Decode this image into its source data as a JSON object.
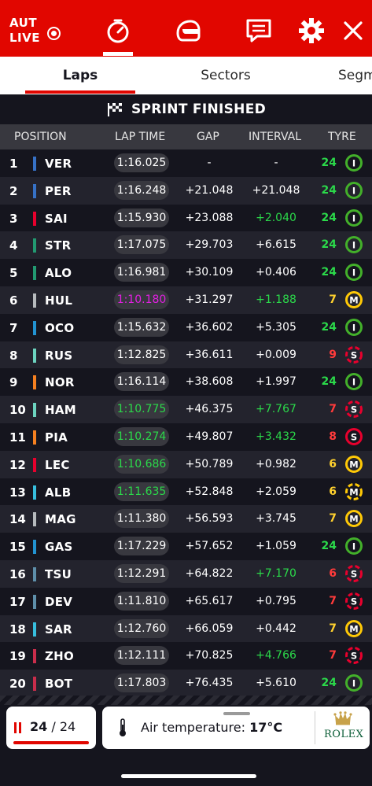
{
  "topbar": {
    "session_code": "AUT",
    "live_label": "LIVE",
    "icons": [
      "timer-icon",
      "helmet-icon",
      "chat-icon",
      "gear-icon",
      "close-icon"
    ]
  },
  "tabs": [
    {
      "label": "Laps",
      "active": true
    },
    {
      "label": "Sectors",
      "active": false
    },
    {
      "label": "Segm",
      "active": false
    }
  ],
  "banner": {
    "text": "SPRINT FINISHED",
    "icon": "checkered-flag-icon"
  },
  "columns": {
    "position": "POSITION",
    "lap_time": "LAP TIME",
    "gap": "GAP",
    "interval": "INTERVAL",
    "tyre": "TYRE"
  },
  "colors": {
    "accent": "#e10600",
    "green": "#2bd94a",
    "purple": "#e31fe3",
    "soft": "#e8002d",
    "medium": "#ffc906",
    "intermediate": "#43b02a",
    "soft_text": "#ff3b3b",
    "medium_text": "#ffd12e"
  },
  "drivers": [
    {
      "pos": "1",
      "code": "VER",
      "team_color": "#3671c6",
      "lap": "1:16.025",
      "lap_style": "normal",
      "gap": "-",
      "int": "-",
      "int_style": "normal",
      "laps": "24",
      "tyre": "I"
    },
    {
      "pos": "2",
      "code": "PER",
      "team_color": "#3671c6",
      "lap": "1:16.248",
      "lap_style": "normal",
      "gap": "+21.048",
      "int": "+21.048",
      "int_style": "normal",
      "laps": "24",
      "tyre": "I"
    },
    {
      "pos": "3",
      "code": "SAI",
      "team_color": "#e8002d",
      "lap": "1:15.930",
      "lap_style": "normal",
      "gap": "+23.088",
      "int": "+2.040",
      "int_style": "green",
      "laps": "24",
      "tyre": "I"
    },
    {
      "pos": "4",
      "code": "STR",
      "team_color": "#229971",
      "lap": "1:17.075",
      "lap_style": "normal",
      "gap": "+29.703",
      "int": "+6.615",
      "int_style": "normal",
      "laps": "24",
      "tyre": "I"
    },
    {
      "pos": "5",
      "code": "ALO",
      "team_color": "#229971",
      "lap": "1:16.981",
      "lap_style": "normal",
      "gap": "+30.109",
      "int": "+0.406",
      "int_style": "normal",
      "laps": "24",
      "tyre": "I"
    },
    {
      "pos": "6",
      "code": "HUL",
      "team_color": "#b6babd",
      "lap": "1:10.180",
      "lap_style": "purple",
      "gap": "+31.297",
      "int": "+1.188",
      "int_style": "green",
      "laps": "7",
      "tyre": "M"
    },
    {
      "pos": "7",
      "code": "OCO",
      "team_color": "#2293d1",
      "lap": "1:15.632",
      "lap_style": "normal",
      "gap": "+36.602",
      "int": "+5.305",
      "int_style": "normal",
      "laps": "24",
      "tyre": "I"
    },
    {
      "pos": "8",
      "code": "RUS",
      "team_color": "#6cd3bf",
      "lap": "1:12.825",
      "lap_style": "normal",
      "gap": "+36.611",
      "int": "+0.009",
      "int_style": "normal",
      "laps": "9",
      "tyre": "S-used"
    },
    {
      "pos": "9",
      "code": "NOR",
      "team_color": "#f58020",
      "lap": "1:16.114",
      "lap_style": "normal",
      "gap": "+38.608",
      "int": "+1.997",
      "int_style": "normal",
      "laps": "24",
      "tyre": "I"
    },
    {
      "pos": "10",
      "code": "HAM",
      "team_color": "#6cd3bf",
      "lap": "1:10.775",
      "lap_style": "green",
      "gap": "+46.375",
      "int": "+7.767",
      "int_style": "green",
      "laps": "7",
      "tyre": "S-used"
    },
    {
      "pos": "11",
      "code": "PIA",
      "team_color": "#f58020",
      "lap": "1:10.274",
      "lap_style": "green",
      "gap": "+49.807",
      "int": "+3.432",
      "int_style": "green",
      "laps": "8",
      "tyre": "S"
    },
    {
      "pos": "12",
      "code": "LEC",
      "team_color": "#e8002d",
      "lap": "1:10.686",
      "lap_style": "green",
      "gap": "+50.789",
      "int": "+0.982",
      "int_style": "normal",
      "laps": "6",
      "tyre": "M"
    },
    {
      "pos": "13",
      "code": "ALB",
      "team_color": "#37bedd",
      "lap": "1:11.635",
      "lap_style": "green",
      "gap": "+52.848",
      "int": "+2.059",
      "int_style": "normal",
      "laps": "6",
      "tyre": "M-used"
    },
    {
      "pos": "14",
      "code": "MAG",
      "team_color": "#b6babd",
      "lap": "1:11.380",
      "lap_style": "normal",
      "gap": "+56.593",
      "int": "+3.745",
      "int_style": "normal",
      "laps": "7",
      "tyre": "M"
    },
    {
      "pos": "15",
      "code": "GAS",
      "team_color": "#2293d1",
      "lap": "1:17.229",
      "lap_style": "normal",
      "gap": "+57.652",
      "int": "+1.059",
      "int_style": "normal",
      "laps": "24",
      "tyre": "I"
    },
    {
      "pos": "16",
      "code": "TSU",
      "team_color": "#5e8faa",
      "lap": "1:12.291",
      "lap_style": "normal",
      "gap": "+64.822",
      "int": "+7.170",
      "int_style": "green",
      "laps": "6",
      "tyre": "S-used"
    },
    {
      "pos": "17",
      "code": "DEV",
      "team_color": "#5e8faa",
      "lap": "1:11.810",
      "lap_style": "normal",
      "gap": "+65.617",
      "int": "+0.795",
      "int_style": "normal",
      "laps": "7",
      "tyre": "S-used"
    },
    {
      "pos": "18",
      "code": "SAR",
      "team_color": "#37bedd",
      "lap": "1:12.760",
      "lap_style": "normal",
      "gap": "+66.059",
      "int": "+0.442",
      "int_style": "normal",
      "laps": "7",
      "tyre": "M"
    },
    {
      "pos": "19",
      "code": "ZHO",
      "team_color": "#c92d4b",
      "lap": "1:12.111",
      "lap_style": "normal",
      "gap": "+70.825",
      "int": "+4.766",
      "int_style": "green",
      "laps": "7",
      "tyre": "S-used"
    },
    {
      "pos": "20",
      "code": "BOT",
      "team_color": "#c92d4b",
      "lap": "1:17.803",
      "lap_style": "normal",
      "gap": "+76.435",
      "int": "+5.610",
      "int_style": "normal",
      "laps": "24",
      "tyre": "I"
    }
  ],
  "lap_counter": {
    "current": "24",
    "separator": "/",
    "total": "24",
    "progress": 1.0
  },
  "weather": {
    "label": "Air temperature:",
    "value": "17°C"
  },
  "sponsor": {
    "name": "ROLEX"
  }
}
